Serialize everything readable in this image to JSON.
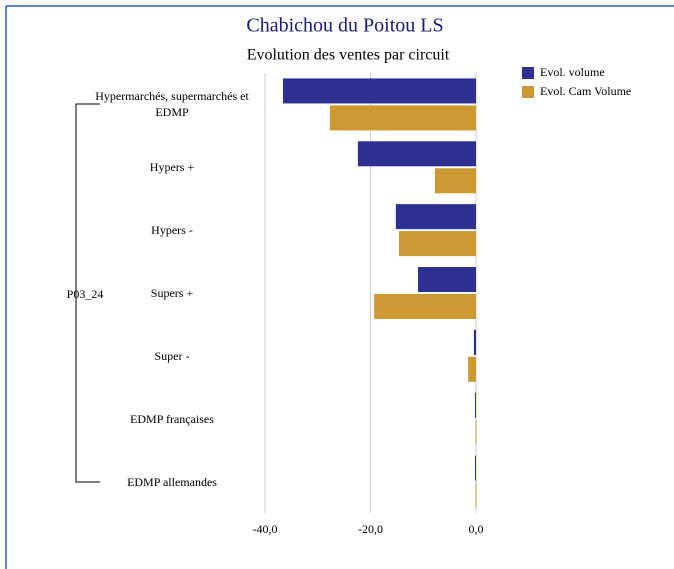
{
  "chart_data": {
    "type": "hbar",
    "title": "Chabichou du Poitou LS",
    "subtitle": "Evolution des ventes par circuit",
    "group_label": "P03_24",
    "categories": [
      "Hypermarchés, supermarchés et EDMP",
      "Hypers +",
      "Hypers -",
      "Supers +",
      "Super -",
      "EDMP françaises",
      "EDMP allemandes"
    ],
    "series": [
      {
        "name": "Evol. volume",
        "color": "#2e3192",
        "values": [
          -36.6,
          -22.4,
          -15.2,
          -11.0,
          -0.4,
          -0.2,
          -0.2
        ]
      },
      {
        "name": "Evol. Cam Volume",
        "color": "#cc9933",
        "values": [
          -27.7,
          -7.8,
          -14.6,
          -19.3,
          -1.5,
          -0.1,
          -0.1
        ]
      }
    ],
    "xlim": [
      -40,
      0
    ],
    "xticks": [
      {
        "value": -40,
        "label": "-40,0"
      },
      {
        "value": -20,
        "label": "-20,0"
      },
      {
        "value": 0,
        "label": "0,0"
      }
    ],
    "grid": true,
    "legend": "top-right"
  }
}
